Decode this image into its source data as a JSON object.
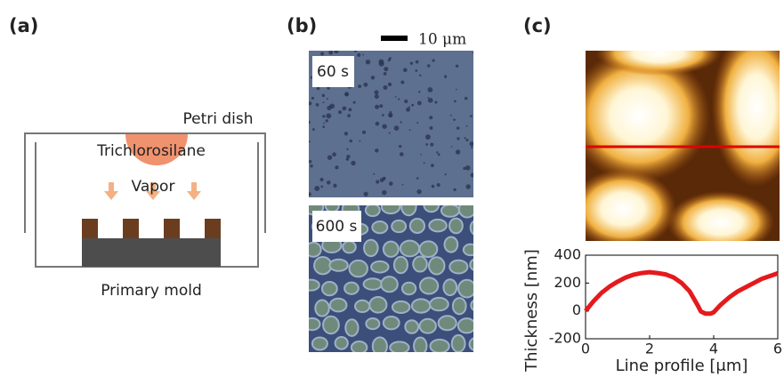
{
  "panels": {
    "a": {
      "label": "(a)",
      "petri_dish": "Petri dish",
      "source": "Trichlorosilane",
      "vapor": "Vapor",
      "mold": "Primary mold"
    },
    "b": {
      "label": "(b)",
      "scale_bar": "10 μm",
      "image_1": "60 s",
      "image_2": "600 s"
    },
    "c": {
      "label": "(c)"
    }
  },
  "chart_data": {
    "type": "line",
    "xlabel": "Line profile [μm]",
    "ylabel": "Thickness [nm]",
    "x": [
      0,
      0.25,
      0.5,
      0.75,
      1,
      1.25,
      1.5,
      1.75,
      2,
      2.25,
      2.5,
      2.75,
      3,
      3.25,
      3.5,
      3.6,
      3.75,
      3.9,
      4,
      4.2,
      4.5,
      4.75,
      5,
      5.25,
      5.5,
      5.75,
      6
    ],
    "series": [
      {
        "color": "#e41a1c",
        "values": [
          0,
          70,
          130,
          175,
          210,
          240,
          260,
          272,
          278,
          272,
          262,
          240,
          200,
          140,
          40,
          -5,
          -20,
          -20,
          -10,
          40,
          100,
          140,
          170,
          200,
          230,
          250,
          270
        ]
      }
    ],
    "xlim": [
      0,
      6
    ],
    "xticks": [
      0,
      2,
      4,
      6
    ],
    "ylim": [
      -200,
      400
    ],
    "yticks": [
      -200,
      0,
      200,
      400
    ]
  }
}
